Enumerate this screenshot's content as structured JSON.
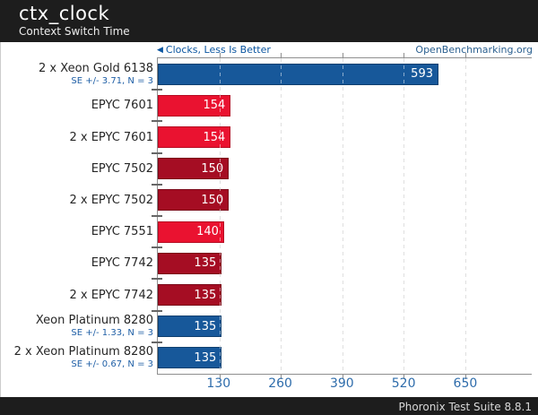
{
  "header": {
    "title": "ctx_clock",
    "subtitle": "Context Switch Time"
  },
  "legend": {
    "better": "Clocks, Less Is Better",
    "site": "OpenBenchmarking.org"
  },
  "footer": {
    "text": "Phoronix Test Suite 8.8.1"
  },
  "colors": {
    "header_bg": "#1d1d1d",
    "accent_blue": "#17589a",
    "bright_red": "#ea1230",
    "dark_red": "#a50d23",
    "axis_text": "#2e6cab",
    "se_text": "#1f5fa6"
  },
  "chart_data": {
    "type": "bar",
    "orientation": "horizontal",
    "title": "ctx_clock",
    "subtitle": "Context Switch Time",
    "xlabel": "Clocks",
    "note": "Clocks, Less Is Better",
    "xlim": [
      0,
      790
    ],
    "xticks": [
      130,
      260,
      390,
      520,
      650
    ],
    "grid": "dashed-vertical",
    "bars": [
      {
        "label": "2 x Xeon Gold 6138",
        "se": "SE +/- 3.71, N = 3",
        "value": 593,
        "color": "#17589a",
        "border": "#10406f"
      },
      {
        "label": "EPYC 7601",
        "se": "",
        "value": 154,
        "color": "#ea1230",
        "border": "#b50c23"
      },
      {
        "label": "2 x EPYC 7601",
        "se": "",
        "value": 154,
        "color": "#ea1230",
        "border": "#b50c23"
      },
      {
        "label": "EPYC 7502",
        "se": "",
        "value": 150,
        "color": "#a50d23",
        "border": "#7a0818"
      },
      {
        "label": "2 x EPYC 7502",
        "se": "",
        "value": 150,
        "color": "#a50d23",
        "border": "#7a0818"
      },
      {
        "label": "EPYC 7551",
        "se": "",
        "value": 140,
        "color": "#ea1230",
        "border": "#b50c23"
      },
      {
        "label": "EPYC 7742",
        "se": "",
        "value": 135,
        "color": "#a50d23",
        "border": "#7a0818"
      },
      {
        "label": "2 x EPYC 7742",
        "se": "",
        "value": 135,
        "color": "#a50d23",
        "border": "#7a0818"
      },
      {
        "label": "Xeon Platinum 8280",
        "se": "SE +/- 1.33, N = 3",
        "value": 135,
        "color": "#17589a",
        "border": "#10406f"
      },
      {
        "label": "2 x Xeon Platinum 8280",
        "se": "SE +/- 0.67, N = 3",
        "value": 135,
        "color": "#17589a",
        "border": "#10406f"
      }
    ]
  }
}
